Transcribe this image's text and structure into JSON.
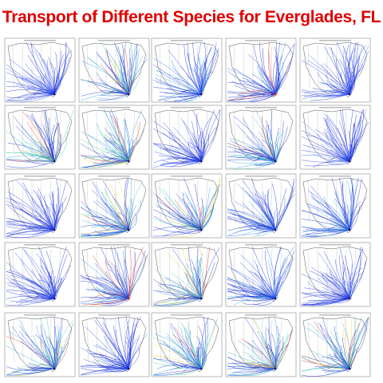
{
  "title": "Transport of Different Species for Everglades, FL"
}
